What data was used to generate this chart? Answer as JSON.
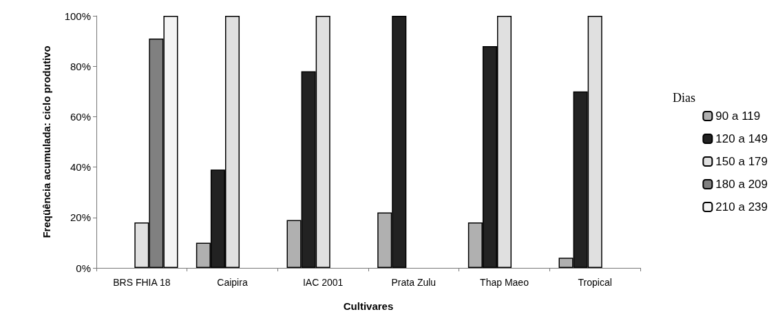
{
  "chart_data": {
    "type": "bar",
    "xlabel": "Cultivares",
    "ylabel": "Freqüência acumulada: ciclo produtivo",
    "legend_title": "Dias",
    "legend": "right",
    "grid": false,
    "categories": [
      "BRS FHIA 18",
      "Caipira",
      "IAC 2001",
      "Prata Zulu",
      "Thap Maeo",
      "Tropical"
    ],
    "ylim": [
      0,
      100
    ],
    "yticks": [
      {
        "value": 0,
        "label": "0%"
      },
      {
        "value": 20,
        "label": "20%"
      },
      {
        "value": 40,
        "label": "40%"
      },
      {
        "value": 60,
        "label": "60%"
      },
      {
        "value": 80,
        "label": "80%"
      },
      {
        "value": 100,
        "label": "100%"
      }
    ],
    "series": [
      {
        "name": "90 a 119",
        "color": "#b0b0b0",
        "values": [
          null,
          10,
          19,
          22,
          18,
          4
        ]
      },
      {
        "name": "120 a 149",
        "color": "#222222",
        "values": [
          null,
          39,
          78,
          100,
          88,
          70
        ]
      },
      {
        "name": "150 a 179",
        "color": "#e0e0e0",
        "values": [
          18,
          100,
          100,
          null,
          100,
          100
        ]
      },
      {
        "name": "180 a 209",
        "color": "#808080",
        "values": [
          91,
          null,
          null,
          null,
          null,
          null
        ]
      },
      {
        "name": "210 a 239",
        "color": "#f4f4f4",
        "values": [
          100,
          null,
          null,
          null,
          null,
          null
        ]
      }
    ]
  }
}
